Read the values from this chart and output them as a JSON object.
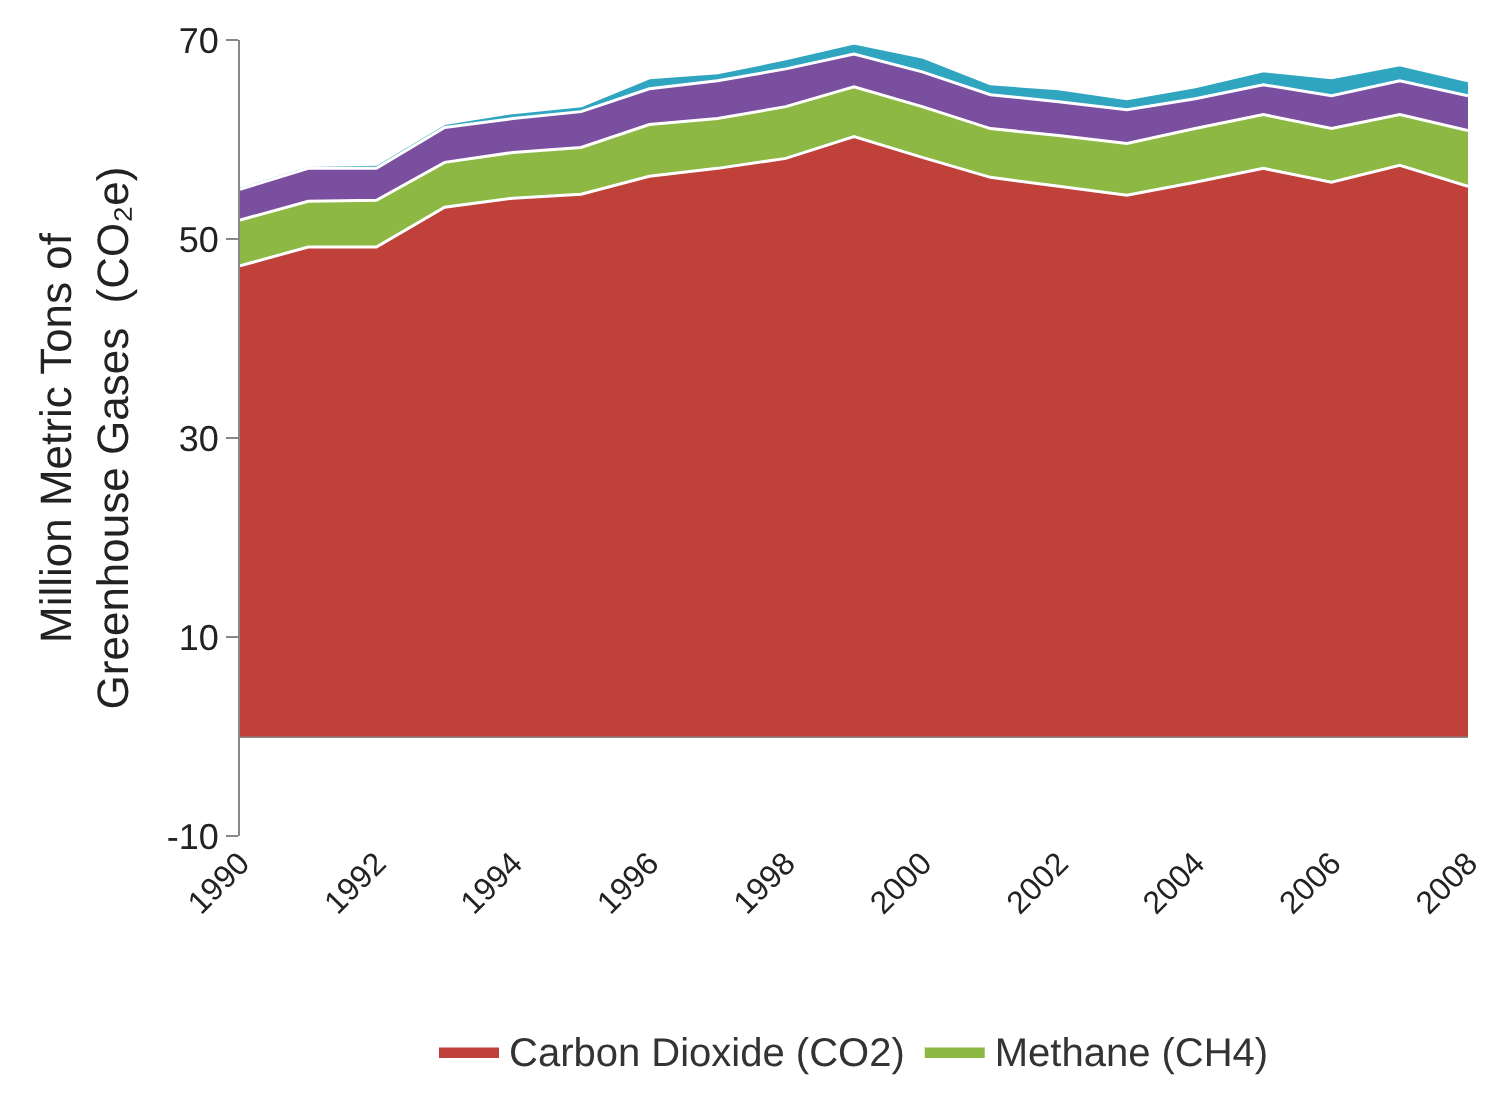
{
  "chart_data": {
    "type": "area",
    "stacked": true,
    "ylabel": "Million Metric Tons of Greenhouse Gases  (CO₂e)",
    "x": [
      1990,
      1991,
      1992,
      1993,
      1994,
      1995,
      1996,
      1997,
      1998,
      1999,
      2000,
      2001,
      2002,
      2003,
      2004,
      2005,
      2006,
      2007,
      2008
    ],
    "series": [
      {
        "name": "Carbon Dioxide (CO2)",
        "color": "#c0403a",
        "values": [
          47.3,
          49.2,
          49.2,
          53.2,
          54.1,
          54.5,
          56.3,
          57.1,
          58.1,
          60.3,
          58.2,
          56.2,
          55.3,
          54.4,
          55.7,
          57.1,
          55.7,
          57.4,
          55.3
        ]
      },
      {
        "name": "Methane (CH4)",
        "color": "#8db843",
        "values": [
          4.6,
          4.6,
          4.7,
          4.5,
          4.6,
          4.7,
          5.2,
          5.0,
          5.2,
          5.0,
          5.1,
          4.9,
          5.1,
          5.2,
          5.4,
          5.4,
          5.4,
          5.1,
          5.6
        ]
      },
      {
        "color": "#7b4fa0",
        "values": [
          3.1,
          3.3,
          3.2,
          3.5,
          3.4,
          3.6,
          3.6,
          3.8,
          3.8,
          3.3,
          3.5,
          3.4,
          3.4,
          3.4,
          3.0,
          3.0,
          3.3,
          3.4,
          3.5
        ]
      },
      {
        "color": "#2fa5c0",
        "values": [
          0.3,
          0.3,
          0.4,
          0.4,
          0.6,
          0.6,
          1.1,
          0.8,
          1.0,
          1.1,
          1.5,
          1.1,
          1.3,
          1.1,
          1.2,
          1.4,
          1.8,
          1.6,
          1.5
        ]
      }
    ],
    "xlim": [
      1990,
      2008
    ],
    "xticks": [
      1990,
      1992,
      1994,
      1996,
      1998,
      2000,
      2002,
      2004,
      2006,
      2008
    ],
    "ylim": [
      -10,
      70
    ],
    "yticks": [
      -10,
      10,
      30,
      50,
      70
    ],
    "legend": "bottom"
  }
}
